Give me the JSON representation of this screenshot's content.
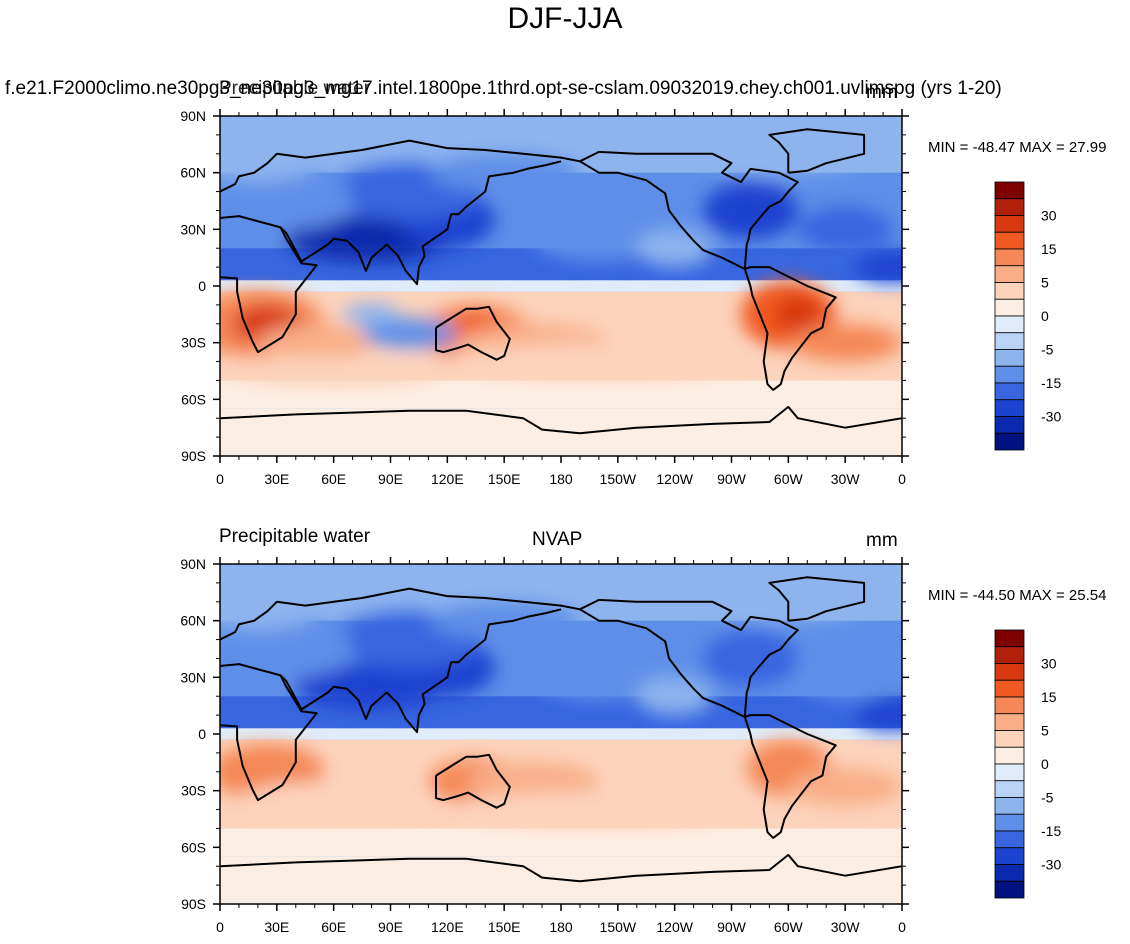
{
  "title": "DJF-JJA",
  "panels": [
    {
      "left_label": "f.e21.F2000climo.ne30pg3_ne30pg3_mg17.intel.1800pe.1thrd.opt-se-cslam.09032019.chey.ch001.uvlimspg (yrs 1-20)",
      "overlay_label": "Precipitable water",
      "center_label": "",
      "units": "mm",
      "min_max": "MIN = -48.47 MAX =  27.99"
    },
    {
      "left_label": "Precipitable water",
      "overlay_label": "",
      "center_label": "NVAP",
      "units": "mm",
      "min_max": "MIN = -44.50 MAX =  25.54"
    }
  ],
  "lat_labels": [
    "90N",
    "60N",
    "30N",
    "0",
    "30S",
    "60S",
    "90S"
  ],
  "lon_labels": [
    "0",
    "30E",
    "60E",
    "90E",
    "120E",
    "150E",
    "180",
    "150W",
    "120W",
    "90W",
    "60W",
    "30W",
    "0"
  ],
  "colorbar": {
    "labels": [
      "30",
      "15",
      "5",
      "0",
      "-5",
      "-15",
      "-30"
    ],
    "colors": [
      "#7f0000",
      "#b0200b",
      "#d8380f",
      "#f05a22",
      "#f58856",
      "#f9ae88",
      "#fcd3bb",
      "#fdeee3",
      "#e0ecf9",
      "#b8d3f4",
      "#8eb4ee",
      "#5e8fe8",
      "#3766e0",
      "#1a43d0",
      "#0b29ad",
      "#001280"
    ]
  },
  "chart_data": {
    "type": "heatmap",
    "variable": "Precipitable water",
    "units": "mm",
    "colorbar_levels": [
      30,
      15,
      5,
      0,
      -5,
      -15,
      -30
    ],
    "panels": [
      {
        "label": "f.e21.F2000climo.ne30pg3_ne30pg3_mg17.intel.1800pe.1thrd.opt-se-cslam.09032019.chey.ch001.uvlimspg (yrs 1-20)",
        "min": -48.47,
        "max": 27.99
      },
      {
        "label": "NVAP",
        "min": -44.5,
        "max": 25.54
      }
    ]
  }
}
